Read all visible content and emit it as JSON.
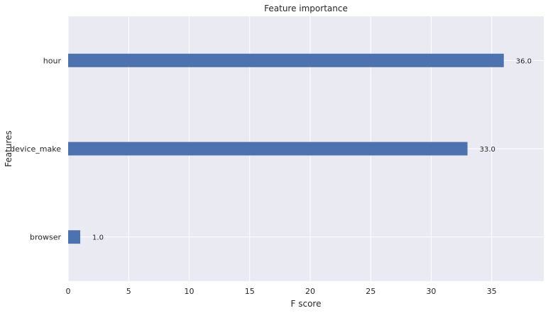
{
  "chart_data": {
    "type": "bar",
    "orientation": "horizontal",
    "title": "Feature importance",
    "xlabel": "F score",
    "ylabel": "Features",
    "categories": [
      "hour",
      "device_make",
      "browser"
    ],
    "values": [
      36.0,
      33.0,
      1.0
    ],
    "value_labels": [
      "36.0",
      "33.0",
      "1.0"
    ],
    "xlim": [
      0,
      39.3
    ],
    "xticks": [
      0,
      5,
      10,
      15,
      20,
      25,
      30,
      35
    ],
    "grid": true,
    "legend": "none",
    "colors": {
      "bar": "#4c72b0",
      "plot_background": "#eaeaf2",
      "grid": "#ffffff",
      "text": "#262626"
    }
  }
}
